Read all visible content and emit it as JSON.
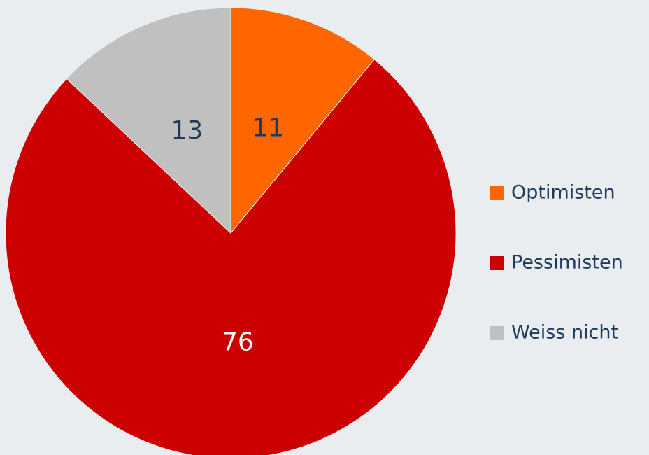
{
  "chart_data": {
    "type": "pie",
    "categories": [
      "Optimisten",
      "Pessimisten",
      "Weiss nicht"
    ],
    "values": [
      11,
      76,
      13
    ],
    "colors": [
      "#ff6600",
      "#cc0000",
      "#c0c0c0"
    ],
    "label_colors": [
      "#1f3b5c",
      "#ffffff",
      "#1f3b5c"
    ],
    "legend": "right"
  }
}
